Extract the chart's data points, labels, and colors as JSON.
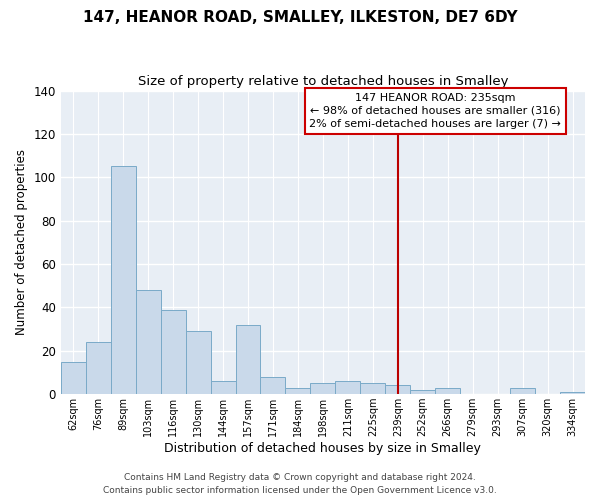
{
  "title": "147, HEANOR ROAD, SMALLEY, ILKESTON, DE7 6DY",
  "subtitle": "Size of property relative to detached houses in Smalley",
  "xlabel": "Distribution of detached houses by size in Smalley",
  "ylabel": "Number of detached properties",
  "bar_labels": [
    "62sqm",
    "76sqm",
    "89sqm",
    "103sqm",
    "116sqm",
    "130sqm",
    "144sqm",
    "157sqm",
    "171sqm",
    "184sqm",
    "198sqm",
    "211sqm",
    "225sqm",
    "239sqm",
    "252sqm",
    "266sqm",
    "279sqm",
    "293sqm",
    "307sqm",
    "320sqm",
    "334sqm"
  ],
  "bar_values": [
    15,
    24,
    105,
    48,
    39,
    29,
    6,
    32,
    8,
    3,
    5,
    6,
    5,
    4,
    2,
    3,
    0,
    0,
    3,
    0,
    1
  ],
  "bar_color": "#c9d9ea",
  "bar_edge_color": "#7aaac8",
  "vline_x_index": 13,
  "vline_color": "#bb0000",
  "annotation_title": "147 HEANOR ROAD: 235sqm",
  "annotation_line1": "← 98% of detached houses are smaller (316)",
  "annotation_line2": "2% of semi-detached houses are larger (7) →",
  "annotation_box_color": "#ffffff",
  "annotation_border_color": "#cc0000",
  "ylim": [
    0,
    140
  ],
  "yticks": [
    0,
    20,
    40,
    60,
    80,
    100,
    120,
    140
  ],
  "footer_line1": "Contains HM Land Registry data © Crown copyright and database right 2024.",
  "footer_line2": "Contains public sector information licensed under the Open Government Licence v3.0.",
  "background_color": "#ffffff",
  "plot_bg_color": "#e8eef5",
  "grid_color": "#ffffff"
}
